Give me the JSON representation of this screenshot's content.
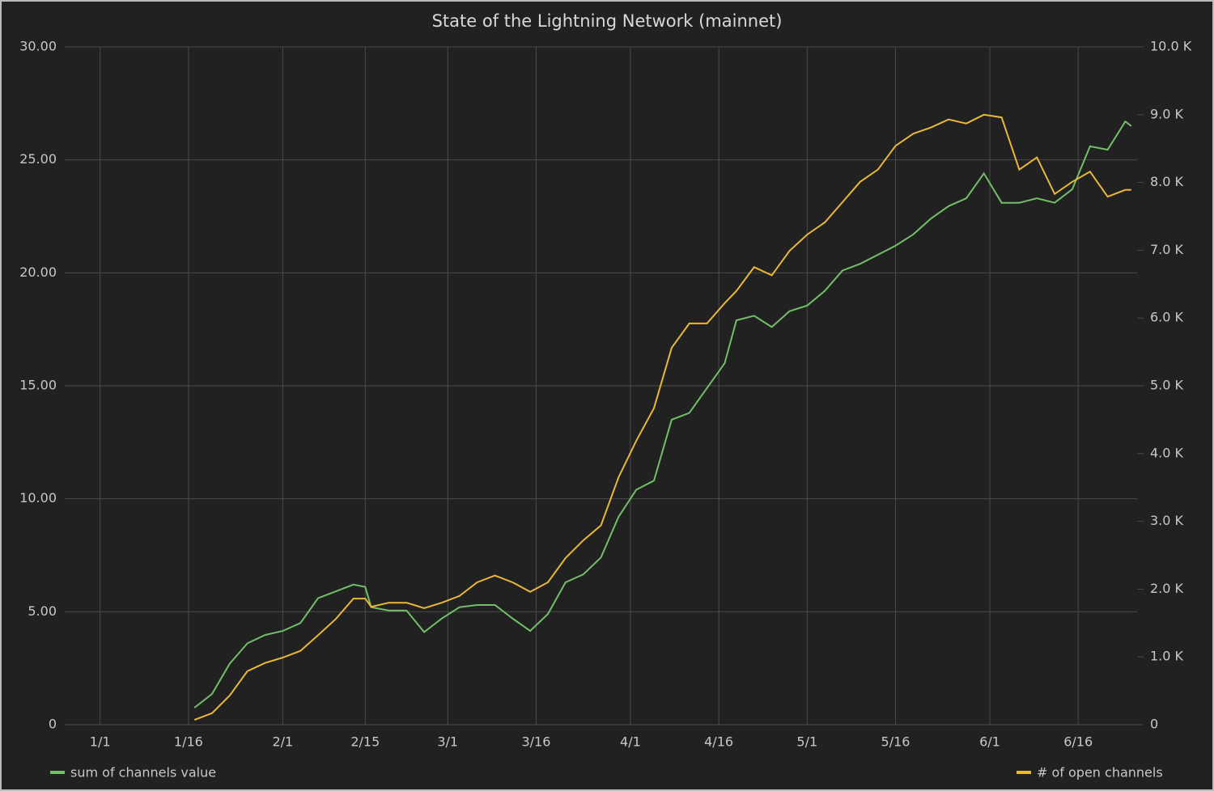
{
  "chart_data": {
    "type": "line",
    "title": "State of the Lightning Network (mainnet)",
    "x": [
      "1/17",
      "1/20",
      "1/23",
      "1/26",
      "1/29",
      "2/1",
      "2/4",
      "2/7",
      "2/10",
      "2/13",
      "2/15",
      "2/16",
      "2/19",
      "2/22",
      "2/25",
      "2/28",
      "3/3",
      "3/6",
      "3/9",
      "3/12",
      "3/15",
      "3/18",
      "3/21",
      "3/24",
      "3/27",
      "3/30",
      "4/2",
      "4/5",
      "4/8",
      "4/11",
      "4/14",
      "4/17",
      "4/19",
      "4/22",
      "4/25",
      "4/28",
      "5/1",
      "5/4",
      "5/7",
      "5/10",
      "5/13",
      "5/16",
      "5/19",
      "5/22",
      "5/25",
      "5/28",
      "5/31",
      "6/3",
      "6/6",
      "6/9",
      "6/12",
      "6/15",
      "6/18",
      "6/21",
      "6/24",
      "6/25"
    ],
    "xlim": [
      "12/26",
      "6/26"
    ],
    "xticks": [
      "1/1",
      "1/16",
      "2/1",
      "2/15",
      "3/1",
      "3/16",
      "4/1",
      "4/16",
      "5/1",
      "5/16",
      "6/1",
      "6/16"
    ],
    "ylim": [
      0,
      30
    ],
    "yticks": [
      0,
      {
        "value": 5,
        "label": "5.00"
      },
      {
        "value": 10,
        "label": "10.00"
      },
      {
        "value": 15,
        "label": "15.00"
      },
      {
        "value": 20,
        "label": "20.00"
      },
      {
        "value": 25,
        "label": "25.00"
      },
      {
        "value": 30,
        "label": "30.00"
      }
    ],
    "y2lim": [
      0,
      10000
    ],
    "y2ticks": [
      0,
      {
        "value": 1000,
        "label": "1.0 K"
      },
      {
        "value": 2000,
        "label": "2.0 K"
      },
      {
        "value": 3000,
        "label": "3.0 K"
      },
      {
        "value": 4000,
        "label": "4.0 K"
      },
      {
        "value": 5000,
        "label": "5.0 K"
      },
      {
        "value": 6000,
        "label": "6.0 K"
      },
      {
        "value": 7000,
        "label": "7.0 K"
      },
      {
        "value": 8000,
        "label": "8.0 K"
      },
      {
        "value": 9000,
        "label": "9.0 K"
      },
      {
        "value": 10000,
        "label": "10.0 K"
      }
    ],
    "grid": true,
    "series": [
      {
        "name": "sum of channels value",
        "color": "#73bf69",
        "values": [
          0.75,
          1.36,
          2.7,
          3.6,
          3.97,
          4.15,
          4.5,
          5.6,
          5.9,
          6.2,
          6.1,
          5.2,
          5.05,
          5.05,
          4.1,
          4.7,
          5.2,
          5.3,
          5.3,
          4.7,
          4.15,
          4.9,
          6.3,
          6.65,
          7.4,
          9.2,
          10.4,
          10.8,
          13.5,
          13.8,
          14.9,
          16.0,
          17.9,
          18.1,
          17.6,
          18.3,
          18.55,
          19.2,
          20.1,
          20.4,
          20.8,
          21.2,
          21.7,
          22.4,
          22.95,
          23.3,
          24.4,
          23.1,
          23.1,
          23.3,
          23.1,
          23.7,
          25.6,
          25.45,
          26.7,
          26.5
        ]
      },
      {
        "name": "# of open channels",
        "color": "#eab839",
        "axis": "y2",
        "values": [
          70,
          170,
          430,
          790,
          910,
          990,
          1090,
          1320,
          1560,
          1860,
          1860,
          1740,
          1800,
          1800,
          1720,
          1800,
          1900,
          2100,
          2200,
          2100,
          1960,
          2100,
          2460,
          2720,
          2940,
          3650,
          4190,
          4670,
          5560,
          5920,
          5920,
          6220,
          6400,
          6750,
          6630,
          6990,
          7230,
          7410,
          7710,
          8010,
          8190,
          8540,
          8720,
          8810,
          8930,
          8870,
          9000,
          8960,
          8190,
          8370,
          7830,
          8010,
          8160,
          7790,
          7890,
          7890
        ]
      }
    ]
  }
}
